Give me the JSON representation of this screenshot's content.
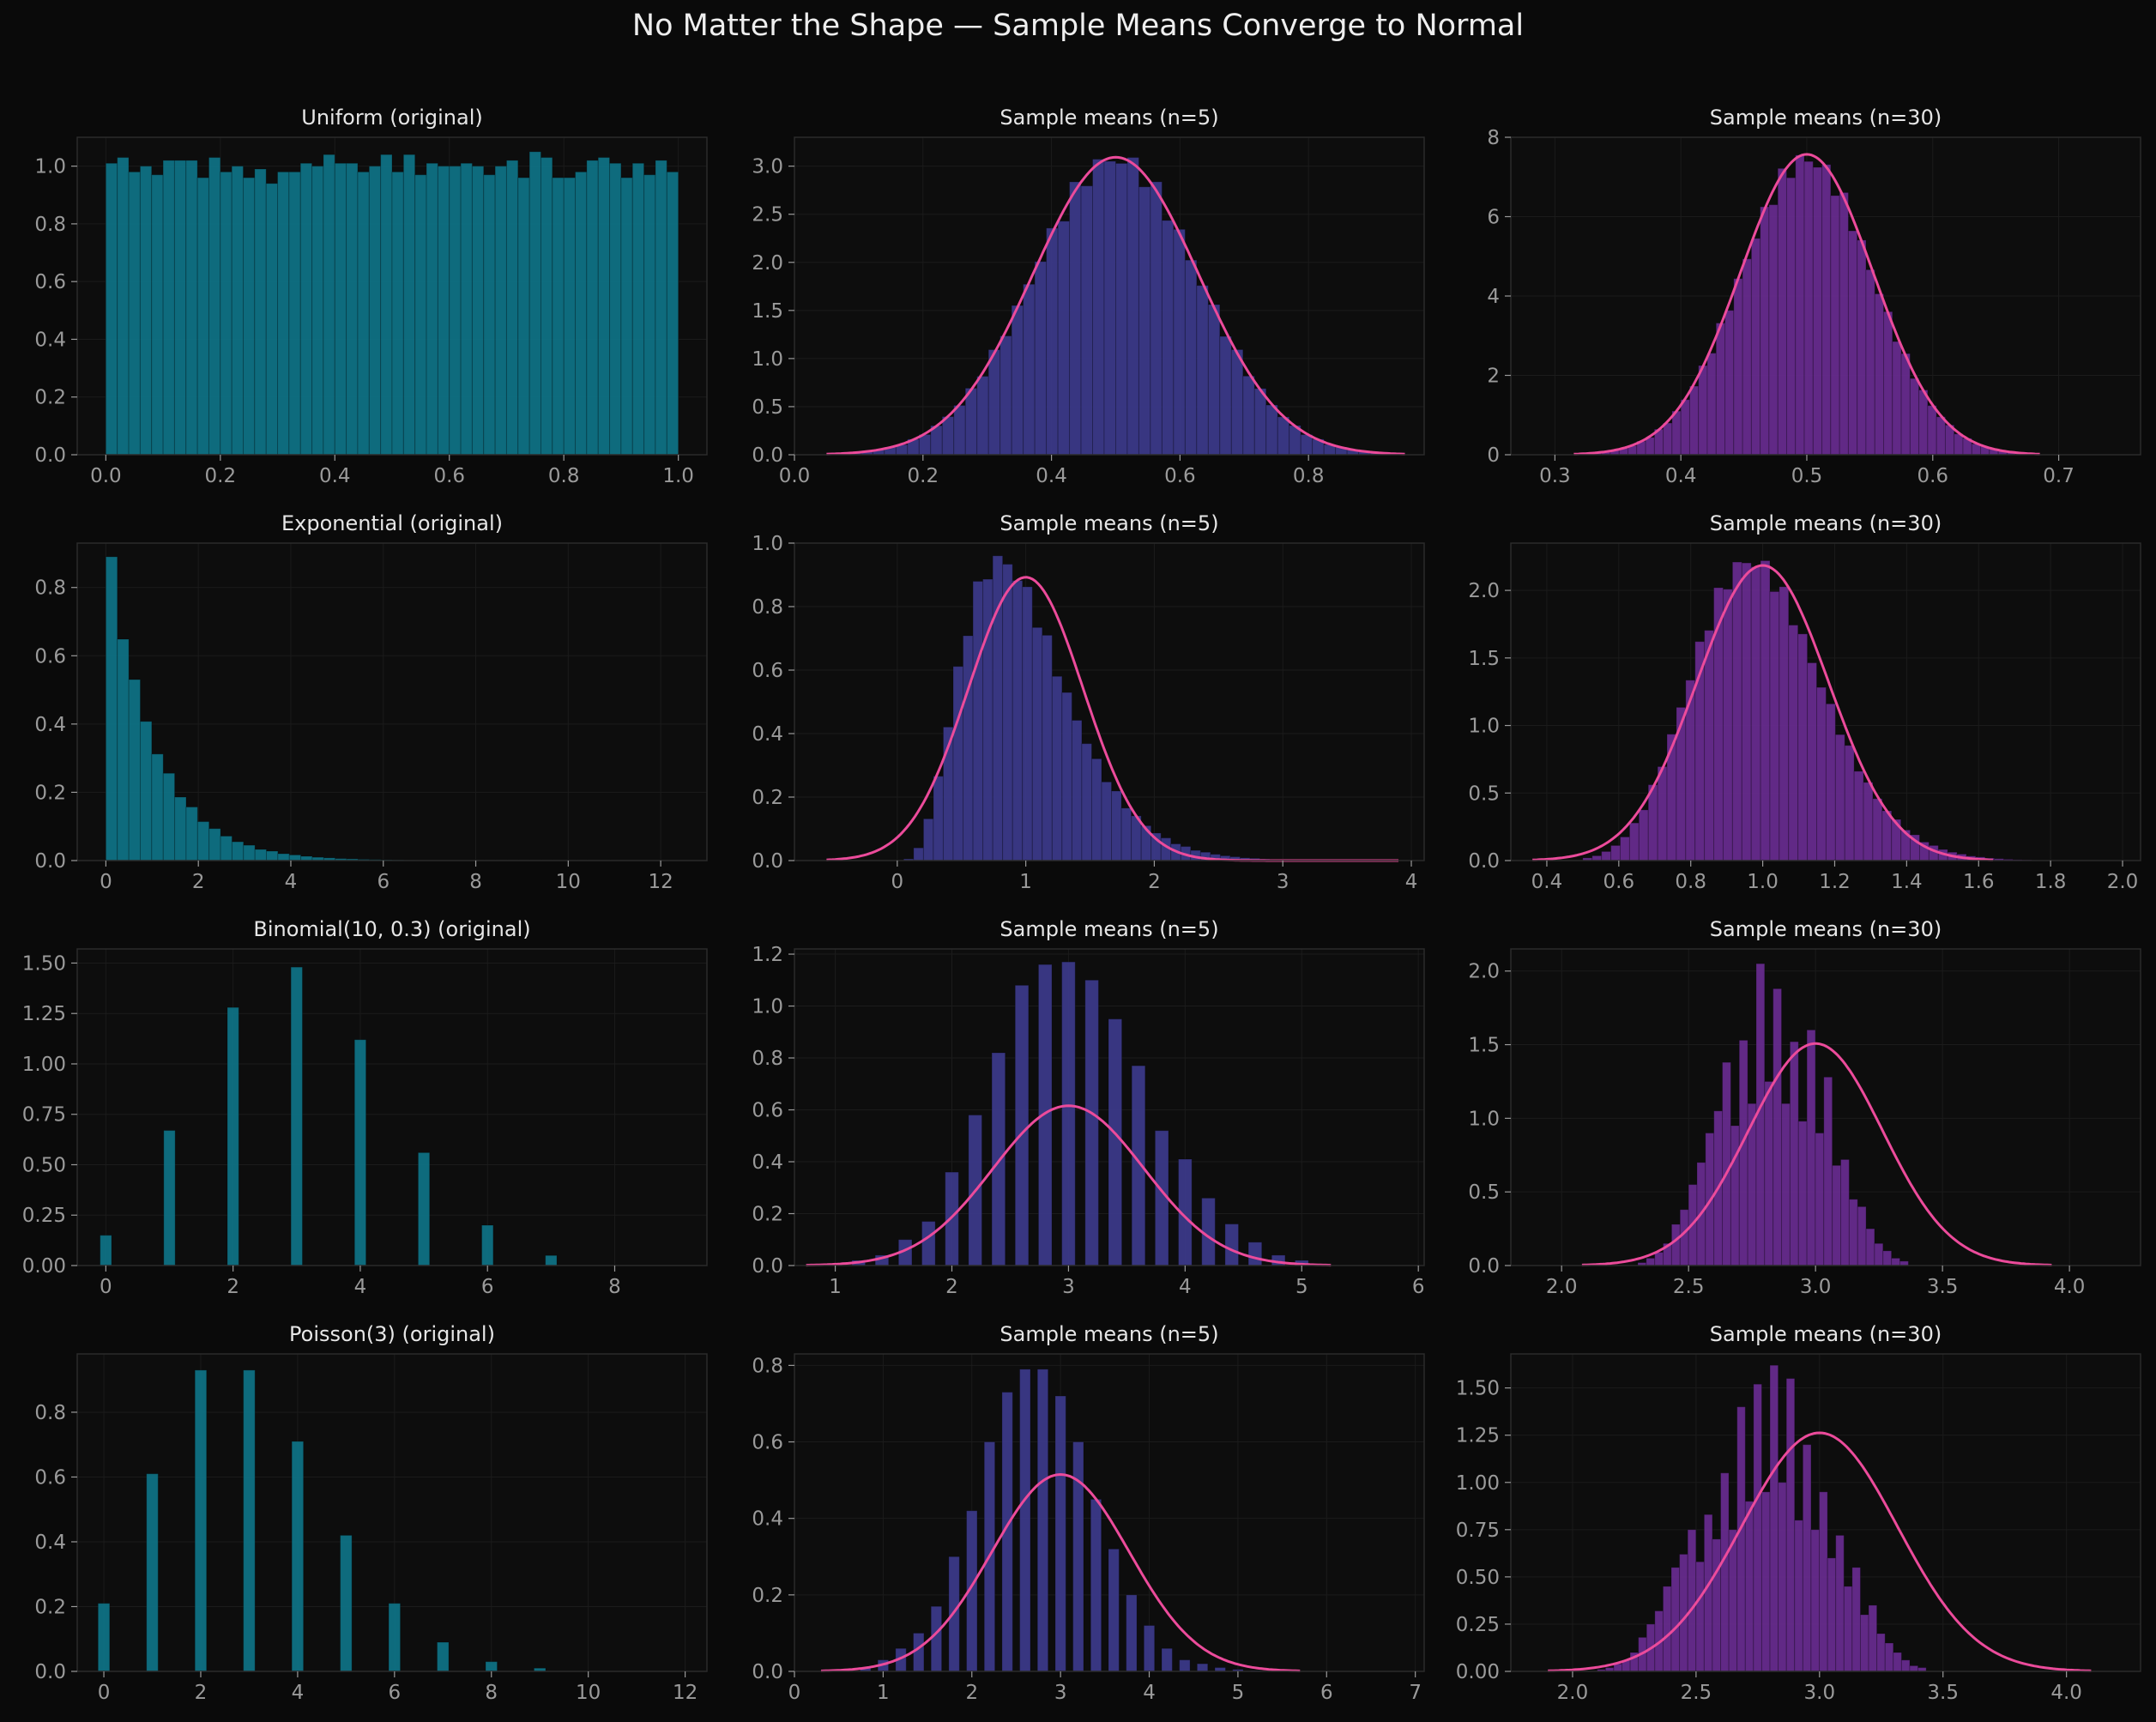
{
  "suptitle": "No Matter the Shape — Sample Means Converge to Normal",
  "colors": {
    "background": "#0a0a0a",
    "axes_bg": "#0d0d0d",
    "spine": "#2b2b2b",
    "grid": "#1b1b1b",
    "tick_label": "#9a9a9a",
    "title": "#e6e6e6",
    "original_bar": "#0e7589",
    "n5_bar": "#3d3b8e",
    "n30_bar": "#6a2c93",
    "normal_curve": "#ec4b9b"
  },
  "chart_data": [
    {
      "type": "bar",
      "title": "Uniform (original)",
      "xlim": [
        -0.05,
        1.05
      ],
      "ylim": [
        0,
        1.1
      ],
      "xticks": [
        0.0,
        0.2,
        0.4,
        0.6,
        0.8,
        1.0
      ],
      "xtick_labels": [
        "0.0",
        "0.2",
        "0.4",
        "0.6",
        "0.8",
        "1.0"
      ],
      "yticks": [
        0.0,
        0.2,
        0.4,
        0.6,
        0.8,
        1.0
      ],
      "ytick_labels": [
        "0.0",
        "0.2",
        "0.4",
        "0.6",
        "0.8",
        "1.0"
      ],
      "bin_start": 0.0,
      "bin_width": 0.02,
      "bar_width": 0.02,
      "values": [
        1.01,
        1.03,
        0.98,
        1.0,
        0.97,
        1.02,
        1.02,
        1.02,
        0.96,
        1.03,
        0.98,
        1.0,
        0.96,
        0.99,
        0.94,
        0.98,
        0.98,
        1.01,
        1.0,
        1.04,
        1.01,
        1.01,
        0.98,
        1.0,
        1.04,
        0.98,
        1.04,
        0.97,
        1.01,
        1.0,
        1.0,
        1.01,
        1.0,
        0.97,
        1.0,
        1.02,
        0.96,
        1.05,
        1.03,
        0.96,
        0.96,
        0.98,
        1.02,
        1.03,
        1.01,
        0.96,
        1.01,
        0.97,
        1.02,
        0.98
      ],
      "color": "original"
    },
    {
      "type": "bar",
      "title": "Sample means (n=5)",
      "xlim": [
        0.0,
        0.98
      ],
      "ylim": [
        0,
        3.3
      ],
      "xticks": [
        0.0,
        0.2,
        0.4,
        0.6,
        0.8
      ],
      "xtick_labels": [
        "0.0",
        "0.2",
        "0.4",
        "0.6",
        "0.8"
      ],
      "yticks": [
        0.0,
        0.5,
        1.0,
        1.5,
        2.0,
        2.5,
        3.0
      ],
      "ytick_labels": [
        "0.0",
        "0.5",
        "1.0",
        "1.5",
        "2.0",
        "2.5",
        "3.0"
      ],
      "hist_type": "normal",
      "mu": 0.5,
      "sigma": 0.129,
      "bins": 50,
      "range": [
        0.05,
        0.95
      ],
      "peak_y": 3.09,
      "curve": {
        "mu": 0.5,
        "sigma": 0.129,
        "range": [
          0.05,
          0.95
        ]
      },
      "color": "n5"
    },
    {
      "type": "bar",
      "title": "Sample means (n=30)",
      "xlim": [
        0.265,
        0.765
      ],
      "ylim": [
        0,
        8.0
      ],
      "xticks": [
        0.3,
        0.4,
        0.5,
        0.6,
        0.7
      ],
      "xtick_labels": [
        "0.3",
        "0.4",
        "0.5",
        "0.6",
        "0.7"
      ],
      "yticks": [
        0,
        2,
        4,
        6,
        8
      ],
      "ytick_labels": [
        "0",
        "2",
        "4",
        "6",
        "8"
      ],
      "hist_type": "normal",
      "mu": 0.5,
      "sigma": 0.0527,
      "bins": 50,
      "range": [
        0.33,
        0.68
      ],
      "peak_y": 7.55,
      "curve": {
        "mu": 0.5,
        "sigma": 0.0527,
        "range": [
          0.315,
          0.685
        ]
      },
      "color": "n30"
    },
    {
      "type": "bar",
      "title": "Exponential (original)",
      "xlim": [
        -0.62,
        13.0
      ],
      "ylim": [
        0,
        0.93
      ],
      "xticks": [
        0,
        2,
        4,
        6,
        8,
        10,
        12
      ],
      "xtick_labels": [
        "0",
        "2",
        "4",
        "6",
        "8",
        "10",
        "12"
      ],
      "yticks": [
        0.0,
        0.2,
        0.4,
        0.6,
        0.8
      ],
      "ytick_labels": [
        "0.0",
        "0.2",
        "0.4",
        "0.6",
        "0.8"
      ],
      "hist_type": "exponential",
      "bins": 50,
      "range": [
        0,
        12.4
      ],
      "peak_y": 0.89,
      "color": "original"
    },
    {
      "type": "bar",
      "title": "Sample means (n=5)",
      "xlim": [
        -0.8,
        4.1
      ],
      "ylim": [
        0,
        1.0
      ],
      "xticks": [
        0,
        1,
        2,
        3,
        4
      ],
      "xtick_labels": [
        "0",
        "1",
        "2",
        "3",
        "4"
      ],
      "yticks": [
        0.0,
        0.2,
        0.4,
        0.6,
        0.8,
        1.0
      ],
      "ytick_labels": [
        "0.0",
        "0.2",
        "0.4",
        "0.6",
        "0.8",
        "1.0"
      ],
      "hist_type": "gamma",
      "shape": 5,
      "scale": 0.2,
      "bins": 50,
      "range": [
        0.05,
        3.9
      ],
      "peak_y": 0.96,
      "curve": {
        "mu": 1.0,
        "sigma": 0.447,
        "range": [
          -0.55,
          3.9
        ]
      },
      "color": "n5"
    },
    {
      "type": "bar",
      "title": "Sample means (n=30)",
      "xlim": [
        0.3,
        2.05
      ],
      "ylim": [
        0,
        2.35
      ],
      "xticks": [
        0.4,
        0.6,
        0.8,
        1.0,
        1.2,
        1.4,
        1.6,
        1.8,
        2.0
      ],
      "xtick_labels": [
        "0.4",
        "0.6",
        "0.8",
        "1.0",
        "1.2",
        "1.4",
        "1.6",
        "1.8",
        "2.0"
      ],
      "yticks": [
        0.0,
        0.5,
        1.0,
        1.5,
        2.0
      ],
      "ytick_labels": [
        "0.0",
        "0.5",
        "1.0",
        "1.5",
        "2.0"
      ],
      "hist_type": "gamma",
      "shape": 30,
      "scale": 0.0333,
      "bins": 50,
      "range": [
        0.5,
        1.8
      ],
      "peak_y": 2.22,
      "curve": {
        "mu": 1.0,
        "sigma": 0.1826,
        "range": [
          0.36,
          1.64
        ]
      },
      "color": "n30"
    },
    {
      "type": "bar",
      "title": "Binomial(10, 0.3) (original)",
      "xlim": [
        -0.45,
        9.45
      ],
      "ylim": [
        0,
        1.57
      ],
      "xticks": [
        0,
        2,
        4,
        6,
        8
      ],
      "xtick_labels": [
        "0",
        "2",
        "4",
        "6",
        "8"
      ],
      "yticks": [
        0.0,
        0.25,
        0.5,
        0.75,
        1.0,
        1.25,
        1.5
      ],
      "ytick_labels": [
        "0.00",
        "0.25",
        "0.50",
        "0.75",
        "1.00",
        "1.25",
        "1.50"
      ],
      "bin_start": 0,
      "bin_width": 1,
      "bar_width": 0.18,
      "values": [
        0.15,
        0.67,
        1.28,
        1.48,
        1.12,
        0.56,
        0.2,
        0.05,
        0.0,
        0.0
      ],
      "color": "original"
    },
    {
      "type": "bar",
      "title": "Sample means (n=5)",
      "xlim": [
        0.65,
        6.05
      ],
      "ylim": [
        0,
        1.22
      ],
      "xticks": [
        1,
        2,
        3,
        4,
        5,
        6
      ],
      "xtick_labels": [
        "1",
        "2",
        "3",
        "4",
        "5",
        "6"
      ],
      "yticks": [
        0.0,
        0.2,
        0.4,
        0.6,
        0.8,
        1.0,
        1.2
      ],
      "ytick_labels": [
        "0.0",
        "0.2",
        "0.4",
        "0.6",
        "0.8",
        "1.0",
        "1.2"
      ],
      "bin_start": 1.2,
      "bin_width": 0.2,
      "bar_width": 0.115,
      "values": [
        0.02,
        0.04,
        0.1,
        0.17,
        0.36,
        0.58,
        0.82,
        1.08,
        1.16,
        1.17,
        1.1,
        0.95,
        0.77,
        0.52,
        0.41,
        0.26,
        0.16,
        0.09,
        0.04,
        0.02
      ],
      "curve": {
        "mu": 3.0,
        "sigma": 0.648,
        "range": [
          0.75,
          5.25
        ]
      },
      "color": "n5"
    },
    {
      "type": "bar",
      "title": "Sample means (n=30)",
      "xlim": [
        1.8,
        4.28
      ],
      "ylim": [
        0,
        2.15
      ],
      "xticks": [
        2.0,
        2.5,
        3.0,
        3.5,
        4.0
      ],
      "xtick_labels": [
        "2.0",
        "2.5",
        "3.0",
        "3.5",
        "4.0"
      ],
      "yticks": [
        0.0,
        0.5,
        1.0,
        1.5,
        2.0
      ],
      "ytick_labels": [
        "0.0",
        "0.5",
        "1.0",
        "1.5",
        "2.0"
      ],
      "bin_start": 2.3,
      "bin_width": 0.0333,
      "bar_width": 0.0333,
      "values": [
        0.02,
        0.05,
        0.09,
        0.15,
        0.28,
        0.38,
        0.55,
        0.7,
        0.9,
        1.05,
        1.38,
        0.95,
        1.53,
        1.1,
        2.05,
        1.25,
        1.88,
        1.1,
        1.52,
        0.98,
        1.6,
        0.9,
        1.28,
        0.68,
        0.72,
        0.45,
        0.4,
        0.25,
        0.15,
        0.1,
        0.05,
        0.03
      ],
      "curve": {
        "mu": 3.0,
        "sigma": 0.2646,
        "range": [
          2.08,
          3.93
        ]
      },
      "color": "n30"
    },
    {
      "type": "bar",
      "title": "Poisson(3) (original)",
      "xlim": [
        -0.55,
        12.45
      ],
      "ylim": [
        0,
        0.98
      ],
      "xticks": [
        0,
        2,
        4,
        6,
        8,
        10,
        12
      ],
      "xtick_labels": [
        "0",
        "2",
        "4",
        "6",
        "8",
        "10",
        "12"
      ],
      "yticks": [
        0.0,
        0.2,
        0.4,
        0.6,
        0.8
      ],
      "ytick_labels": [
        "0.0",
        "0.2",
        "0.4",
        "0.6",
        "0.8"
      ],
      "bin_start": 0,
      "bin_width": 1,
      "bar_width": 0.24,
      "values": [
        0.21,
        0.61,
        0.93,
        0.93,
        0.71,
        0.42,
        0.21,
        0.09,
        0.03,
        0.01,
        0.0,
        0.0,
        0.0
      ],
      "color": "original"
    },
    {
      "type": "bar",
      "title": "Sample means (n=5)",
      "xlim": [
        0.0,
        7.1
      ],
      "ylim": [
        0,
        0.83
      ],
      "xticks": [
        0,
        1,
        2,
        3,
        4,
        5,
        6,
        7
      ],
      "xtick_labels": [
        "0",
        "1",
        "2",
        "3",
        "4",
        "5",
        "6",
        "7"
      ],
      "yticks": [
        0.0,
        0.2,
        0.4,
        0.6,
        0.8
      ],
      "ytick_labels": [
        "0.0",
        "0.2",
        "0.4",
        "0.6",
        "0.8"
      ],
      "bin_start": 0.8,
      "bin_width": 0.2,
      "bar_width": 0.12,
      "values": [
        0.01,
        0.03,
        0.06,
        0.1,
        0.17,
        0.3,
        0.42,
        0.6,
        0.73,
        0.79,
        0.79,
        0.72,
        0.6,
        0.45,
        0.32,
        0.2,
        0.12,
        0.06,
        0.03,
        0.02,
        0.01,
        0.005,
        0.002
      ],
      "curve": {
        "mu": 3.0,
        "sigma": 0.775,
        "range": [
          0.3,
          5.7
        ]
      },
      "color": "n5"
    },
    {
      "type": "bar",
      "title": "Sample means (n=30)",
      "xlim": [
        1.75,
        4.3
      ],
      "ylim": [
        0,
        1.68
      ],
      "xticks": [
        2.0,
        2.5,
        3.0,
        3.5,
        4.0
      ],
      "xtick_labels": [
        "2.0",
        "2.5",
        "3.0",
        "3.5",
        "4.0"
      ],
      "yticks": [
        0.0,
        0.25,
        0.5,
        0.75,
        1.0,
        1.25,
        1.5
      ],
      "ytick_labels": [
        "0.00",
        "0.25",
        "0.50",
        "0.75",
        "1.00",
        "1.25",
        "1.50"
      ],
      "bin_start": 2.1,
      "bin_width": 0.0333,
      "bar_width": 0.0333,
      "values": [
        0.01,
        0.02,
        0.04,
        0.06,
        0.1,
        0.18,
        0.25,
        0.32,
        0.45,
        0.55,
        0.62,
        0.75,
        0.58,
        0.83,
        0.7,
        1.05,
        0.75,
        1.4,
        0.9,
        1.52,
        0.95,
        1.62,
        1.0,
        1.55,
        0.8,
        1.2,
        0.75,
        0.95,
        0.6,
        0.72,
        0.45,
        0.55,
        0.3,
        0.35,
        0.2,
        0.15,
        0.1,
        0.06,
        0.03,
        0.02
      ],
      "curve": {
        "mu": 3.0,
        "sigma": 0.316,
        "range": [
          1.9,
          4.1
        ]
      },
      "color": "n30"
    }
  ]
}
